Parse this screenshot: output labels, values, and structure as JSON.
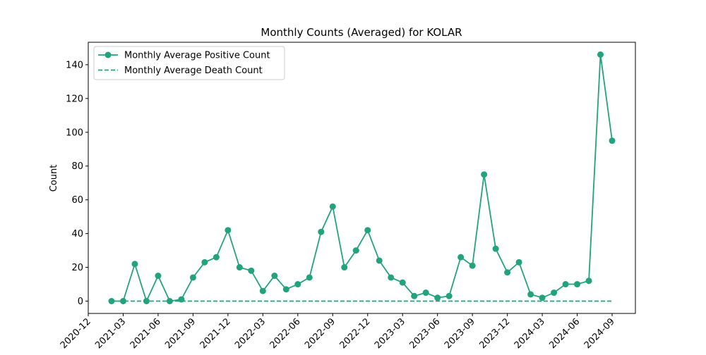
{
  "chart_data": {
    "type": "line",
    "title": "Monthly Counts (Averaged) for KOLAR",
    "y_label": "Count",
    "x": [
      "2021-02",
      "2021-03",
      "2021-04",
      "2021-05",
      "2021-06",
      "2021-07",
      "2021-08",
      "2021-09",
      "2021-10",
      "2021-11",
      "2021-12",
      "2022-01",
      "2022-02",
      "2022-03",
      "2022-04",
      "2022-05",
      "2022-06",
      "2022-07",
      "2022-08",
      "2022-09",
      "2022-10",
      "2022-11",
      "2022-12",
      "2023-01",
      "2023-02",
      "2023-03",
      "2023-04",
      "2023-05",
      "2023-06",
      "2023-07",
      "2023-08",
      "2023-09",
      "2023-10",
      "2023-11",
      "2023-12",
      "2024-01",
      "2024-02",
      "2024-03",
      "2024-04",
      "2024-05",
      "2024-06",
      "2024-07",
      "2024-08",
      "2024-09"
    ],
    "series": [
      {
        "name": "Monthly Average Positive Count",
        "color": "#23a37d",
        "style": "solid",
        "markers": true,
        "values": [
          0,
          0,
          22,
          0,
          15,
          0,
          1,
          14,
          23,
          26,
          42,
          20,
          18,
          6,
          15,
          7,
          10,
          14,
          41,
          56,
          20,
          30,
          42,
          24,
          14,
          11,
          3,
          5,
          2,
          3,
          26,
          21,
          75,
          31,
          17,
          23,
          4,
          2,
          5,
          10,
          10,
          12,
          146,
          95
        ]
      },
      {
        "name": "Monthly Average Death Count",
        "color": "#23a37d",
        "style": "dashed",
        "markers": false,
        "values": [
          0,
          0,
          0,
          0,
          0,
          0,
          0,
          0,
          0,
          0,
          0,
          0,
          0,
          0,
          0,
          0,
          0,
          0,
          0,
          0,
          0,
          0,
          0,
          0,
          0,
          0,
          0,
          0,
          0,
          0,
          0,
          0,
          0,
          0,
          0,
          0,
          0,
          0,
          0,
          0,
          0,
          0,
          0,
          0
        ]
      }
    ],
    "xlim": [
      "2020-12",
      "2024-11"
    ],
    "xticks": [
      "2020-12",
      "2021-03",
      "2021-06",
      "2021-09",
      "2021-12",
      "2022-03",
      "2022-06",
      "2022-09",
      "2022-12",
      "2023-03",
      "2023-06",
      "2023-09",
      "2023-12",
      "2024-03",
      "2024-06",
      "2024-09"
    ],
    "ylim": [
      -7.3,
      153.3
    ],
    "yticks": [
      0,
      20,
      40,
      60,
      80,
      100,
      120,
      140
    ],
    "legend": "upper left"
  }
}
